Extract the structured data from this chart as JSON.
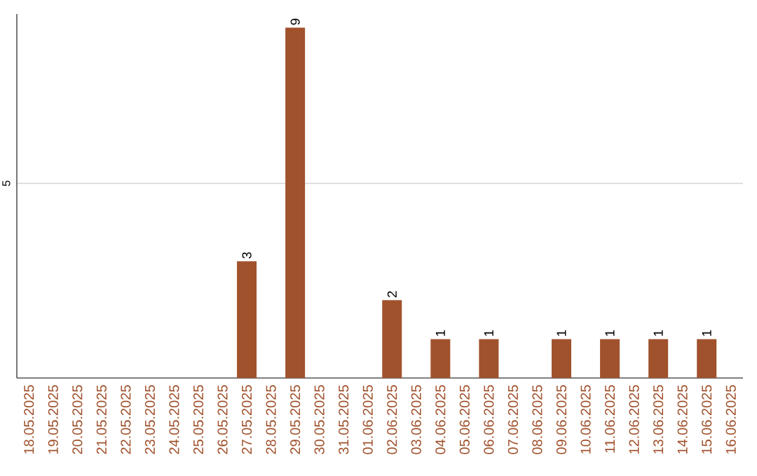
{
  "chart_data": {
    "type": "bar",
    "categories": [
      "18.05.2025",
      "19.05.2025",
      "20.05.2025",
      "21.05.2025",
      "22.05.2025",
      "23.05.2025",
      "24.05.2025",
      "25.05.2025",
      "26.05.2025",
      "27.05.2025",
      "28.05.2025",
      "29.05.2025",
      "30.05.2025",
      "31.05.2025",
      "01.06.2025",
      "02.06.2025",
      "03.06.2025",
      "04.06.2025",
      "05.06.2025",
      "06.06.2025",
      "07.06.2025",
      "08.06.2025",
      "09.06.2025",
      "10.06.2025",
      "11.06.2025",
      "12.06.2025",
      "13.06.2025",
      "14.06.2025",
      "15.06.2025",
      "16.06.2025"
    ],
    "values": [
      0,
      0,
      0,
      0,
      0,
      0,
      0,
      0,
      0,
      3,
      0,
      9,
      0,
      0,
      0,
      2,
      0,
      1,
      0,
      1,
      0,
      0,
      1,
      0,
      1,
      0,
      1,
      0,
      1,
      0
    ],
    "value_labels": [
      null,
      null,
      null,
      null,
      null,
      null,
      null,
      null,
      null,
      "3",
      null,
      "9",
      null,
      null,
      null,
      "2",
      null,
      "1",
      null,
      "1",
      null,
      null,
      "1",
      null,
      "1",
      null,
      "1",
      null,
      "1",
      null
    ],
    "color": "#a0522d",
    "ylim": [
      0,
      9.35
    ],
    "yticks": [
      5
    ],
    "grid": "y"
  }
}
